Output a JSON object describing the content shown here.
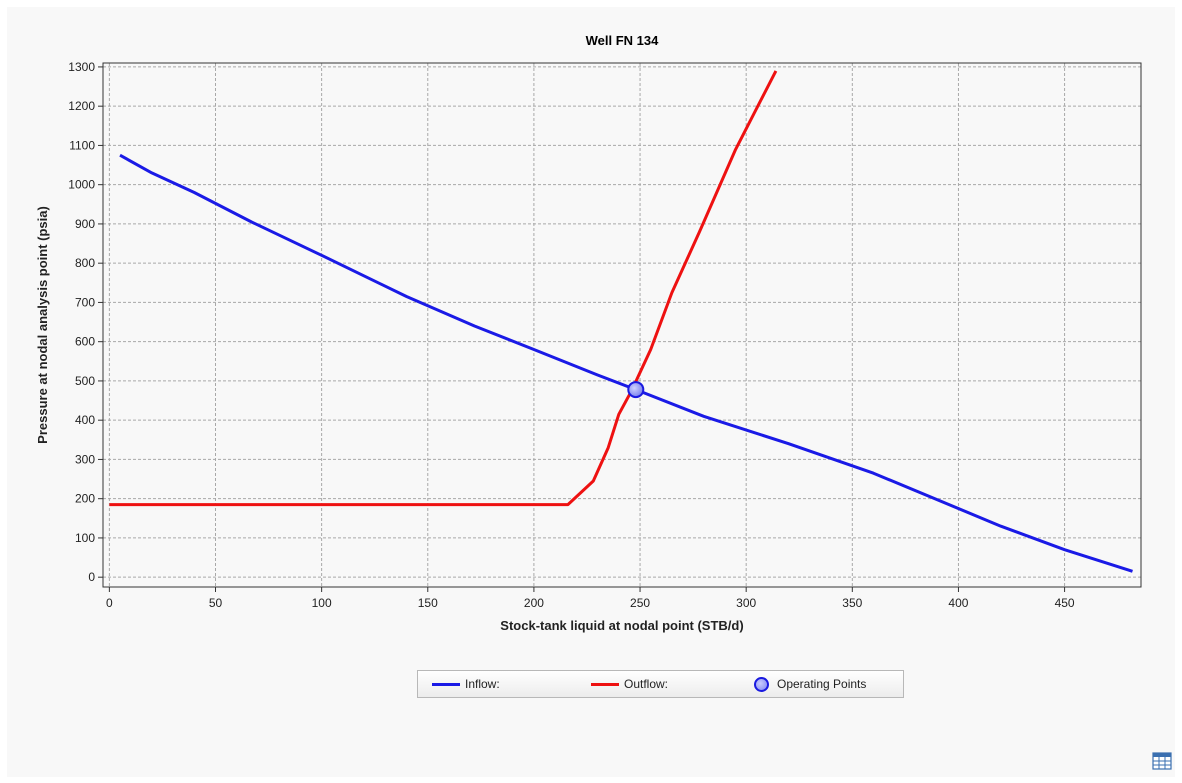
{
  "chart_data": {
    "type": "line",
    "title": "Well FN 134",
    "xlabel": "Stock-tank liquid at nodal point (STB/d)",
    "ylabel": "Pressure at nodal analysis point (psia)",
    "xlim": [
      -3,
      486
    ],
    "ylim": [
      -25,
      1310
    ],
    "xticks": [
      0,
      50,
      100,
      150,
      200,
      250,
      300,
      350,
      400,
      450
    ],
    "yticks": [
      0,
      100,
      200,
      300,
      400,
      500,
      600,
      700,
      800,
      900,
      1000,
      1100,
      1200,
      1300
    ],
    "grid": true,
    "legend_position": "bottom",
    "series": [
      {
        "name": "Inflow:",
        "color": "#1a1ae6",
        "x": [
          5,
          20,
          40,
          67,
          100,
          140,
          172,
          200,
          230,
          248,
          280,
          320,
          360,
          420,
          450,
          482
        ],
        "y": [
          1075,
          1030,
          980,
          905,
          820,
          715,
          640,
          580,
          515,
          478,
          410,
          340,
          265,
          130,
          70,
          15
        ]
      },
      {
        "name": "Outflow:",
        "color": "#ee1111",
        "x": [
          0,
          216,
          228,
          235,
          240,
          246,
          255,
          265,
          278,
          295,
          314
        ],
        "y": [
          185,
          185,
          245,
          330,
          415,
          475,
          580,
          725,
          880,
          1090,
          1290
        ]
      }
    ],
    "operating_points": {
      "name": "Operating Points",
      "points": [
        {
          "x": 248,
          "y": 478
        }
      ]
    }
  },
  "ui": {
    "table_icon": "table-icon"
  }
}
